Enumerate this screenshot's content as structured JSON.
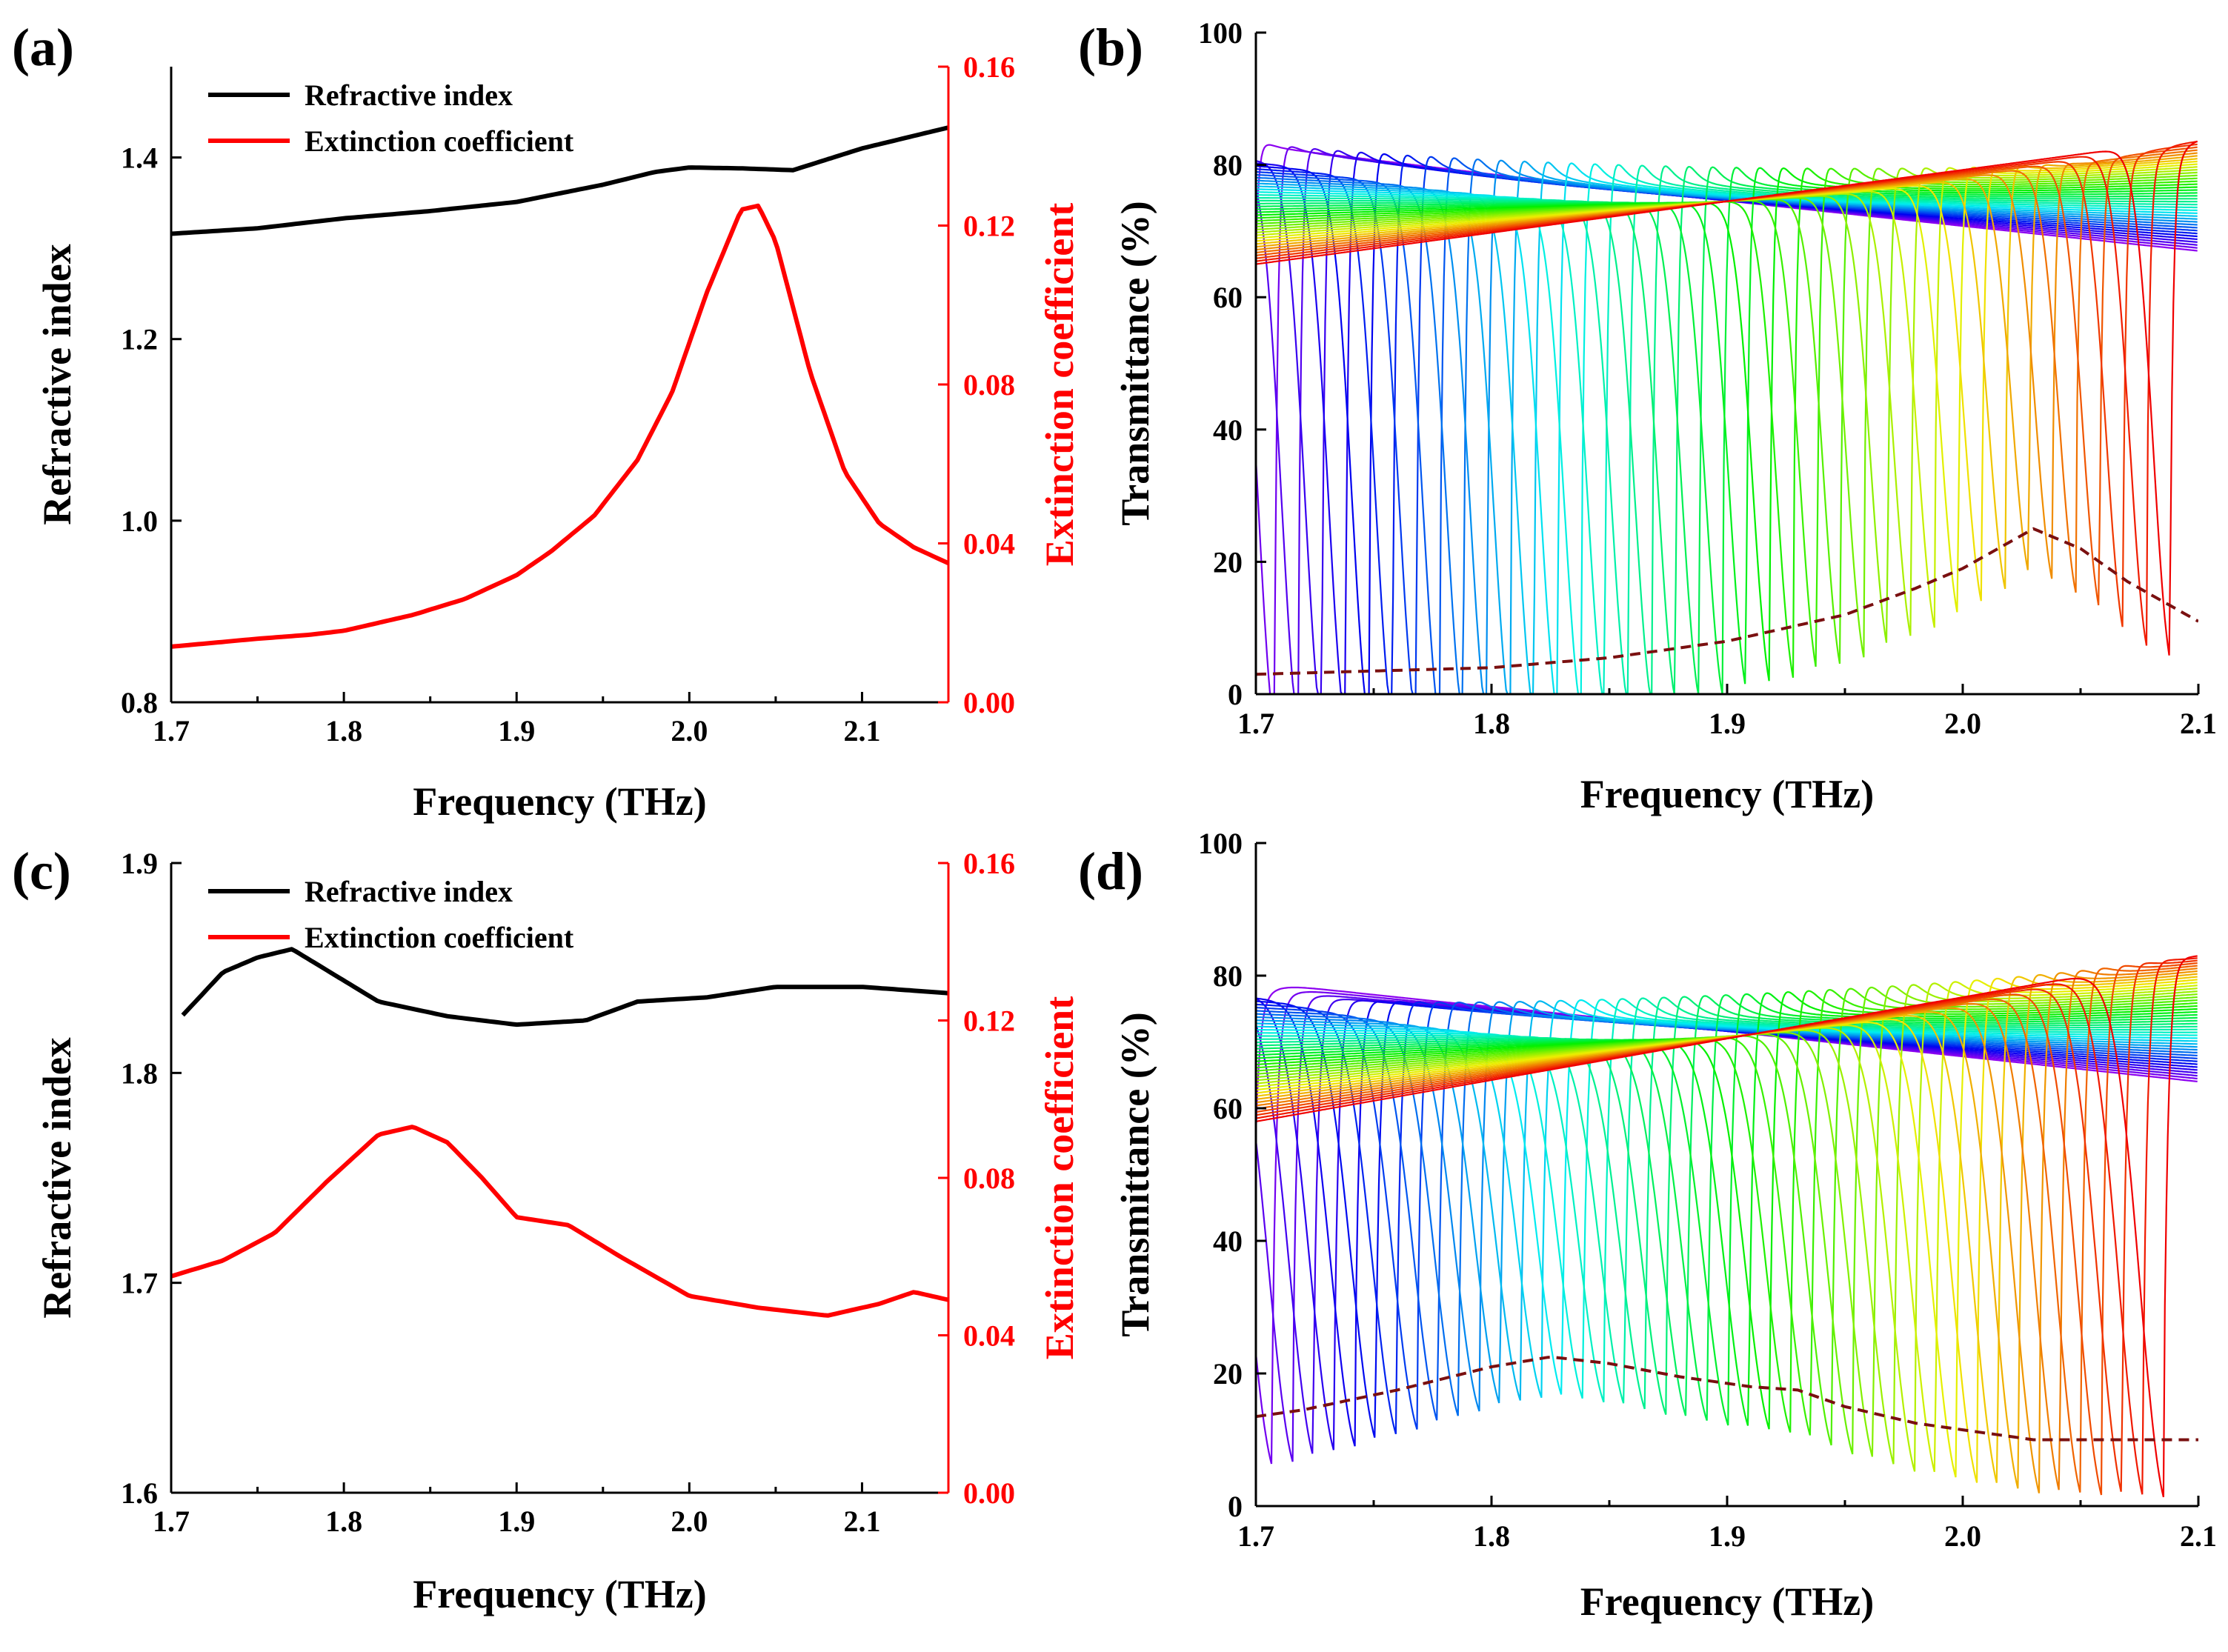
{
  "colors": {
    "black": "#000000",
    "red": "#ff0000",
    "envelope": "#7a1010"
  },
  "chart_data": [
    {
      "id": "a",
      "panel_label": "(a)",
      "type": "line",
      "xlabel": "Frequency (THz)",
      "ylabel": "Refractive index",
      "y2label": "Extinction coefficient",
      "xlim": [
        1.7,
        2.15
      ],
      "ylim": [
        0.8,
        1.5
      ],
      "y2lim": [
        0.0,
        0.16
      ],
      "xticks": [
        1.7,
        1.8,
        1.9,
        2.0,
        2.1
      ],
      "xtick_labels": [
        "1.7",
        "1.8",
        "1.9",
        "2.0",
        "2.1"
      ],
      "yticks": [
        0.8,
        1.0,
        1.2,
        1.4
      ],
      "ytick_labels": [
        "0.8",
        "1.0",
        "1.2",
        "1.4"
      ],
      "y2ticks": [
        0.0,
        0.04,
        0.08,
        0.12,
        0.16
      ],
      "y2tick_labels": [
        "0.00",
        "0.04",
        "0.08",
        "0.12",
        "0.16"
      ],
      "legend": [
        "Refractive index",
        "Extinction coefficient"
      ],
      "series": [
        {
          "name": "Refractive index",
          "axis": "left",
          "color": "#000000",
          "x": [
            1.7,
            1.75,
            1.8,
            1.85,
            1.9,
            1.95,
            1.98,
            2.0,
            2.03,
            2.06,
            2.1,
            2.15
          ],
          "y": [
            1.316,
            1.322,
            1.333,
            1.341,
            1.351,
            1.37,
            1.384,
            1.389,
            1.388,
            1.386,
            1.41,
            1.433
          ]
        },
        {
          "name": "Extinction coefficient",
          "axis": "right",
          "color": "#ff0000",
          "x": [
            1.7,
            1.75,
            1.78,
            1.8,
            1.84,
            1.87,
            1.9,
            1.92,
            1.945,
            1.97,
            1.99,
            2.01,
            2.03,
            2.04,
            2.05,
            2.07,
            2.09,
            2.11,
            2.13,
            2.15
          ],
          "y": [
            0.014,
            0.016,
            0.017,
            0.018,
            0.022,
            0.026,
            0.032,
            0.038,
            0.047,
            0.061,
            0.078,
            0.103,
            0.124,
            0.125,
            0.116,
            0.083,
            0.058,
            0.045,
            0.039,
            0.035
          ]
        }
      ]
    },
    {
      "id": "b",
      "panel_label": "(b)",
      "type": "line",
      "xlabel": "Frequency (THz)",
      "ylabel": "Transmittance (%)",
      "xlim": [
        1.7,
        2.1
      ],
      "ylim": [
        0,
        100
      ],
      "xticks": [
        1.7,
        1.8,
        1.9,
        2.0,
        2.1
      ],
      "xtick_labels": [
        "1.7",
        "1.8",
        "1.9",
        "2.0",
        "2.1"
      ],
      "yticks": [
        0,
        20,
        40,
        60,
        80,
        100
      ],
      "ytick_labels": [
        "0",
        "20",
        "40",
        "60",
        "80",
        "100"
      ],
      "resonances": {
        "count": 40,
        "f0_first": 1.698,
        "f0_step": 0.01,
        "half_width": 0.0028,
        "baseline_at_1.7": [
          82,
          65
        ],
        "baseline_at_2.1": [
          67,
          84
        ],
        "peak_height_start": 84,
        "peak_height_end": 80
      },
      "envelope": {
        "name": "minimum envelope",
        "style": "dashed",
        "color": "#7a1010",
        "x": [
          1.7,
          1.75,
          1.8,
          1.85,
          1.9,
          1.95,
          1.98,
          2.0,
          2.03,
          2.05,
          2.07,
          2.1
        ],
        "y": [
          3,
          3.5,
          4,
          5.5,
          8,
          12,
          16,
          19,
          25,
          22,
          17,
          11
        ]
      }
    },
    {
      "id": "c",
      "panel_label": "(c)",
      "type": "line",
      "xlabel": "Frequency (THz)",
      "ylabel": "Refractive index",
      "y2label": "Extinction coefficient",
      "xlim": [
        1.7,
        2.15
      ],
      "ylim": [
        1.6,
        1.9
      ],
      "y2lim": [
        0.0,
        0.16
      ],
      "xticks": [
        1.7,
        1.8,
        1.9,
        2.0,
        2.1
      ],
      "xtick_labels": [
        "1.7",
        "1.8",
        "1.9",
        "2.0",
        "2.1"
      ],
      "yticks": [
        1.6,
        1.7,
        1.8,
        1.9
      ],
      "ytick_labels": [
        "1.6",
        "1.7",
        "1.8",
        "1.9"
      ],
      "y2ticks": [
        0.0,
        0.04,
        0.08,
        0.12,
        0.16
      ],
      "y2tick_labels": [
        "0.00",
        "0.04",
        "0.08",
        "0.12",
        "0.16"
      ],
      "legend": [
        "Refractive index",
        "Extinction coefficient"
      ],
      "series": [
        {
          "name": "Refractive index",
          "axis": "left",
          "color": "#000000",
          "x": [
            1.705,
            1.73,
            1.75,
            1.77,
            1.79,
            1.82,
            1.86,
            1.9,
            1.94,
            1.97,
            2.01,
            2.05,
            2.1,
            2.15
          ],
          "y": [
            1.826,
            1.848,
            1.855,
            1.859,
            1.849,
            1.834,
            1.827,
            1.823,
            1.825,
            1.834,
            1.836,
            1.841,
            1.841,
            1.838
          ]
        },
        {
          "name": "Extinction coefficient",
          "axis": "right",
          "color": "#ff0000",
          "x": [
            1.7,
            1.73,
            1.76,
            1.79,
            1.82,
            1.84,
            1.86,
            1.88,
            1.9,
            1.93,
            1.96,
            2.0,
            2.04,
            2.08,
            2.11,
            2.13,
            2.15
          ],
          "y": [
            0.055,
            0.059,
            0.066,
            0.079,
            0.091,
            0.093,
            0.089,
            0.08,
            0.07,
            0.068,
            0.06,
            0.05,
            0.047,
            0.045,
            0.048,
            0.051,
            0.049
          ]
        }
      ]
    },
    {
      "id": "d",
      "panel_label": "(d)",
      "type": "line",
      "xlabel": "Frequency (THz)",
      "ylabel": "Transmittance (%)",
      "xlim": [
        1.7,
        2.1
      ],
      "ylim": [
        0,
        100
      ],
      "xticks": [
        1.7,
        1.8,
        1.9,
        2.0,
        2.1
      ],
      "xtick_labels": [
        "1.7",
        "1.8",
        "1.9",
        "2.0",
        "2.1"
      ],
      "yticks": [
        0,
        20,
        40,
        60,
        80,
        100
      ],
      "ytick_labels": [
        "0",
        "20",
        "40",
        "60",
        "80",
        "100"
      ],
      "resonances": {
        "count": 45,
        "f0_first": 1.698,
        "f0_step": 0.0088,
        "half_width": 0.004,
        "baseline_at_1.7": [
          79,
          58
        ],
        "baseline_at_2.1": [
          64,
          83
        ],
        "peak_height_start": 76,
        "peak_height_end": 83
      },
      "envelope": {
        "name": "minimum envelope",
        "style": "dashed",
        "color": "#7a1010",
        "x": [
          1.7,
          1.72,
          1.76,
          1.8,
          1.825,
          1.85,
          1.88,
          1.91,
          1.93,
          1.95,
          1.98,
          2.01,
          2.03,
          2.06,
          2.09,
          2.1
        ],
        "y": [
          13.5,
          14.5,
          17.5,
          21,
          22.5,
          21.5,
          19.5,
          18,
          17.5,
          15,
          12.5,
          11,
          10,
          10,
          10,
          10
        ]
      }
    }
  ]
}
